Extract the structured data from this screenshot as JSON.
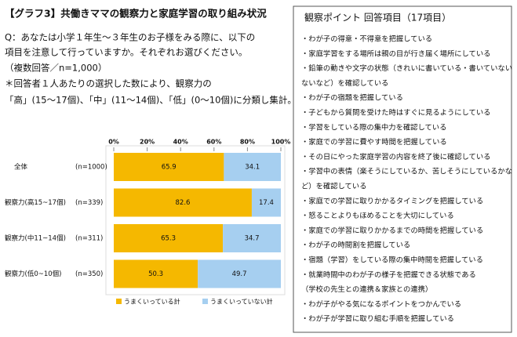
{
  "title": "【グラフ3】共働きママの観察力と家庭学習の取り組み状況",
  "question": [
    "Q：あなたは小学１年生～３年生のお子様をみる際に、以下の",
    "項目を注意して行っていますか。それぞれお選びください。",
    "（複数回答／n=1,000）",
    "＊回答者１人あたりの選択した数により、観察力の",
    "「高」(15～17個)、「中」(11～14個)、「低」(0～10個)に分類し集計。"
  ],
  "chart_data": {
    "type": "bar",
    "orientation": "horizontal",
    "stacked": true,
    "categories": [
      "全体",
      "観察力(高15~17個)",
      "観察力(中11~14個)",
      "観察力(低0~10個)"
    ],
    "n_labels": [
      "(n=1000)",
      "(n=339)",
      "(n=311)",
      "(n=350)"
    ],
    "series": [
      {
        "name": "うまくいっている計",
        "color": "#f5b800",
        "values": [
          65.9,
          82.6,
          65.3,
          50.3
        ]
      },
      {
        "name": "うまくいっていない計",
        "color": "#a6cff0",
        "values": [
          34.1,
          17.4,
          34.7,
          49.7
        ]
      }
    ],
    "xlim": [
      0,
      100
    ],
    "xticks": [
      {
        "value": 0,
        "label": "0%"
      },
      {
        "value": 20,
        "label": "20%"
      },
      {
        "value": 40,
        "label": "40%"
      },
      {
        "value": 60,
        "label": "60%"
      },
      {
        "value": 80,
        "label": "80%"
      },
      {
        "value": 100,
        "label": "100%"
      }
    ],
    "legend": "bottom"
  },
  "panel": {
    "title": "観察ポイント 回答項目（17項目）",
    "items": [
      "・わが子の得意・不得意を把握している",
      "・家庭学習をする場所は親の目が行き届く場所にしている",
      "・鉛筆の動きや文字の状態（きれいに書いている・書いていない",
      "ないなど）を確認している",
      "・わが子の宿題を把握している",
      "・子どもから質問を受けた時はすぐに見るようにしている",
      "・学習をしている際の集中力を確認している",
      "・家庭での学習に費やす時間を把握している",
      "・その日にやった家庭学習の内容を終了後に確認している",
      "・学習中の表情（楽そうにしているか、苦しそうにしているかな",
      "ど）を確認している",
      "・家庭での学習に取りかかるタイミングを把握している",
      "・怒ることよりもほめることを大切にしている",
      "・家庭での学習に取りかかるまでの時間を把握している",
      "・わが子の時間割を把握している",
      "・宿題（学習）をしている際の集中時間を把握している",
      "・就業時間中のわが子の様子を把握できる状態である",
      "（学校の先生との連携＆家族との連携）",
      "・わが子がやる気になるポイントをつかんでいる",
      "・わが子が学習に取り組む手順を把握している"
    ]
  }
}
